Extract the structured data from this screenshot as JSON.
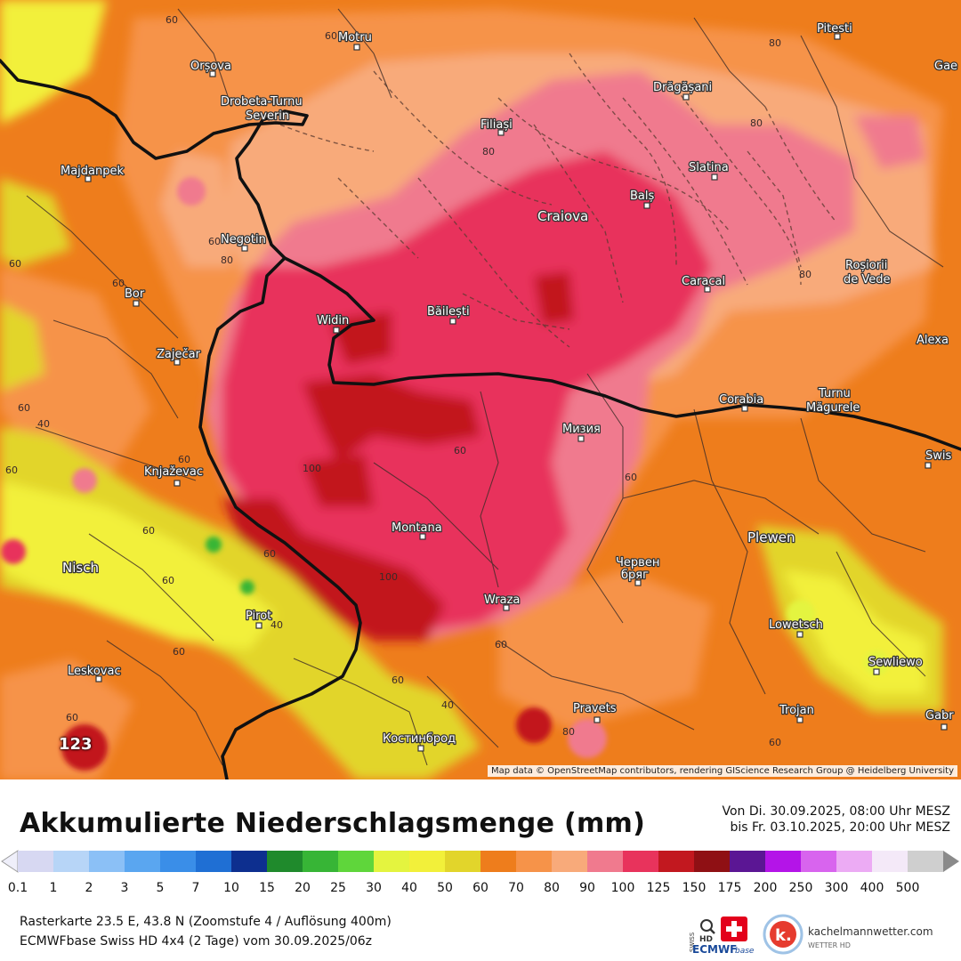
{
  "map": {
    "cities": [
      {
        "name": "Motru",
        "big": false
      },
      {
        "name": "Pitesti",
        "big": false
      },
      {
        "name": "Orșova",
        "big": false
      },
      {
        "name": "Drobeta-Turnu",
        "big": false
      },
      {
        "name": "Severin",
        "big": false
      },
      {
        "name": "Drăgășani",
        "big": false
      },
      {
        "name": "Filiași",
        "big": false
      },
      {
        "name": "Majdanpek",
        "big": false
      },
      {
        "name": "Slatina",
        "big": false
      },
      {
        "name": "Balș",
        "big": false
      },
      {
        "name": "Craiova",
        "big": true
      },
      {
        "name": "Negotin",
        "big": false
      },
      {
        "name": "Roșiorii",
        "big": false
      },
      {
        "name": "de Vede",
        "big": false
      },
      {
        "name": "Bor",
        "big": false
      },
      {
        "name": "Caracal",
        "big": false
      },
      {
        "name": "Băilești",
        "big": false
      },
      {
        "name": "Widin",
        "big": false
      },
      {
        "name": "Alexa",
        "big": false
      },
      {
        "name": "Zaječar",
        "big": false
      },
      {
        "name": "Corabia",
        "big": false
      },
      {
        "name": "Turnu",
        "big": false
      },
      {
        "name": "Măgurele",
        "big": false
      },
      {
        "name": "Мизия",
        "big": false
      },
      {
        "name": "Swis",
        "big": false
      },
      {
        "name": "Knjaževac",
        "big": false
      },
      {
        "name": "Montana",
        "big": false
      },
      {
        "name": "Plewen",
        "big": true
      },
      {
        "name": "Nisch",
        "big": true
      },
      {
        "name": "Червен",
        "big": false
      },
      {
        "name": "бряг",
        "big": false
      },
      {
        "name": "Wraza",
        "big": false
      },
      {
        "name": "Pirot",
        "big": false
      },
      {
        "name": "Lowetsch",
        "big": false
      },
      {
        "name": "Leskovac",
        "big": false
      },
      {
        "name": "Sewliewo",
        "big": false
      },
      {
        "name": "Pravets",
        "big": false
      },
      {
        "name": "Trojan",
        "big": false
      },
      {
        "name": "Gabr",
        "big": false
      },
      {
        "name": "Костинброд",
        "big": false
      },
      {
        "name": "Gae",
        "big": false
      }
    ],
    "isolines": [
      "60",
      "60",
      "80",
      "80",
      "80",
      "60",
      "80",
      "60",
      "60",
      "80",
      "60",
      "60",
      "60",
      "60",
      "100",
      "60",
      "100",
      "60",
      "60",
      "40",
      "60",
      "60",
      "60",
      "40",
      "80",
      "40",
      "60",
      "60",
      "60"
    ],
    "attribution": "Map data © OpenStreetMap contributors, rendering GIScience Research Group @ Heidelberg University",
    "marker_value": "123"
  },
  "legend": {
    "title": "Akkumulierte Niederschlagsmenge (mm)",
    "period_from": "Von Di. 30.09.2025, 08:00 Uhr MESZ",
    "period_to": "bis Fr. 03.10.2025, 20:00 Uhr MESZ",
    "scale": [
      {
        "label": "0.1",
        "color": "#d7d8f2"
      },
      {
        "label": "1",
        "color": "#b7d5f7"
      },
      {
        "label": "2",
        "color": "#8bc0f6"
      },
      {
        "label": "3",
        "color": "#5aa6f0"
      },
      {
        "label": "5",
        "color": "#3a8ee8"
      },
      {
        "label": "7",
        "color": "#1f6fd4"
      },
      {
        "label": "10",
        "color": "#0d2f8f"
      },
      {
        "label": "15",
        "color": "#1f8a2c"
      },
      {
        "label": "20",
        "color": "#37b536"
      },
      {
        "label": "25",
        "color": "#5fd63b"
      },
      {
        "label": "30",
        "color": "#e4f43f"
      },
      {
        "label": "40",
        "color": "#f2f03a"
      },
      {
        "label": "50",
        "color": "#e2d52b"
      },
      {
        "label": "60",
        "color": "#ee7d1c"
      },
      {
        "label": "70",
        "color": "#f69349"
      },
      {
        "label": "80",
        "color": "#f8aa7a"
      },
      {
        "label": "90",
        "color": "#f07a8e"
      },
      {
        "label": "100",
        "color": "#e8335c"
      },
      {
        "label": "125",
        "color": "#c2181f"
      },
      {
        "label": "150",
        "color": "#8f1014"
      },
      {
        "label": "175",
        "color": "#5b1694"
      },
      {
        "label": "200",
        "color": "#b414e8"
      },
      {
        "label": "250",
        "color": "#d864ee"
      },
      {
        "label": "300",
        "color": "#ecabf4"
      },
      {
        "label": "400",
        "color": "#f4e9f8"
      },
      {
        "label": "500",
        "color": "#cfcfcf"
      }
    ],
    "footer_line1": "Rasterkarte 23.5 E, 43.8 N (Zoomstufe 4 / Auflösung 400m)",
    "footer_line2": "ECMWFbase Swiss HD 4x4 (2 Tage) vom 30.09.2025/06z"
  },
  "logos": {
    "swiss": "SWISS",
    "hd": "HD",
    "ecmwf": "ECMWF",
    "base": "base",
    "k": "k.",
    "brand": "kachelmannwetter.com",
    "sub": "WETTER HD"
  }
}
